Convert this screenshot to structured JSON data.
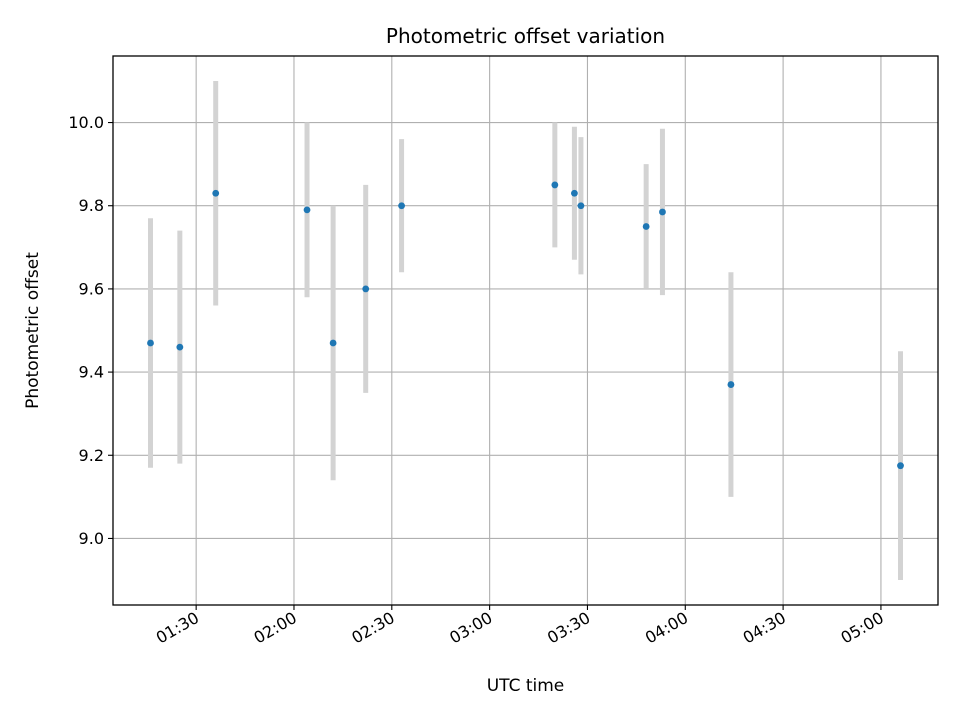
{
  "chart_data": {
    "type": "scatter",
    "title": "Photometric offset variation",
    "xlabel": "UTC time",
    "ylabel": "Photometric offset",
    "x_tick_labels": [
      "01:30",
      "02:00",
      "02:30",
      "03:00",
      "03:30",
      "04:00",
      "04:30",
      "05:00"
    ],
    "x_tick_minutes": [
      90,
      120,
      150,
      180,
      210,
      240,
      270,
      300
    ],
    "xlim_minutes": [
      64.5,
      317.5
    ],
    "y_tick_labels": [
      "9.0",
      "9.2",
      "9.4",
      "9.6",
      "9.8",
      "10.0"
    ],
    "y_ticks": [
      9.0,
      9.2,
      9.4,
      9.6,
      9.8,
      10.0
    ],
    "ylim": [
      8.84,
      10.16
    ],
    "grid": true,
    "series": [
      {
        "marker_color": "#1f77b4",
        "errorbar_color": "#d3d3d3",
        "points": [
          {
            "time": "01:16",
            "y": 9.47,
            "err": 0.3
          },
          {
            "time": "01:25",
            "y": 9.46,
            "err": 0.28
          },
          {
            "time": "01:36",
            "y": 9.83,
            "err": 0.27
          },
          {
            "time": "02:04",
            "y": 9.79,
            "err": 0.21
          },
          {
            "time": "02:12",
            "y": 9.47,
            "err": 0.33
          },
          {
            "time": "02:22",
            "y": 9.6,
            "err": 0.25
          },
          {
            "time": "02:33",
            "y": 9.8,
            "err": 0.16
          },
          {
            "time": "03:20",
            "y": 9.85,
            "err": 0.15
          },
          {
            "time": "03:26",
            "y": 9.83,
            "err": 0.16
          },
          {
            "time": "03:28",
            "y": 9.8,
            "err": 0.165
          },
          {
            "time": "03:48",
            "y": 9.75,
            "err": 0.15
          },
          {
            "time": "03:53",
            "y": 9.785,
            "err": 0.2
          },
          {
            "time": "04:14",
            "y": 9.37,
            "err": 0.27
          },
          {
            "time": "05:06",
            "y": 9.175,
            "err": 0.275
          }
        ]
      }
    ]
  }
}
